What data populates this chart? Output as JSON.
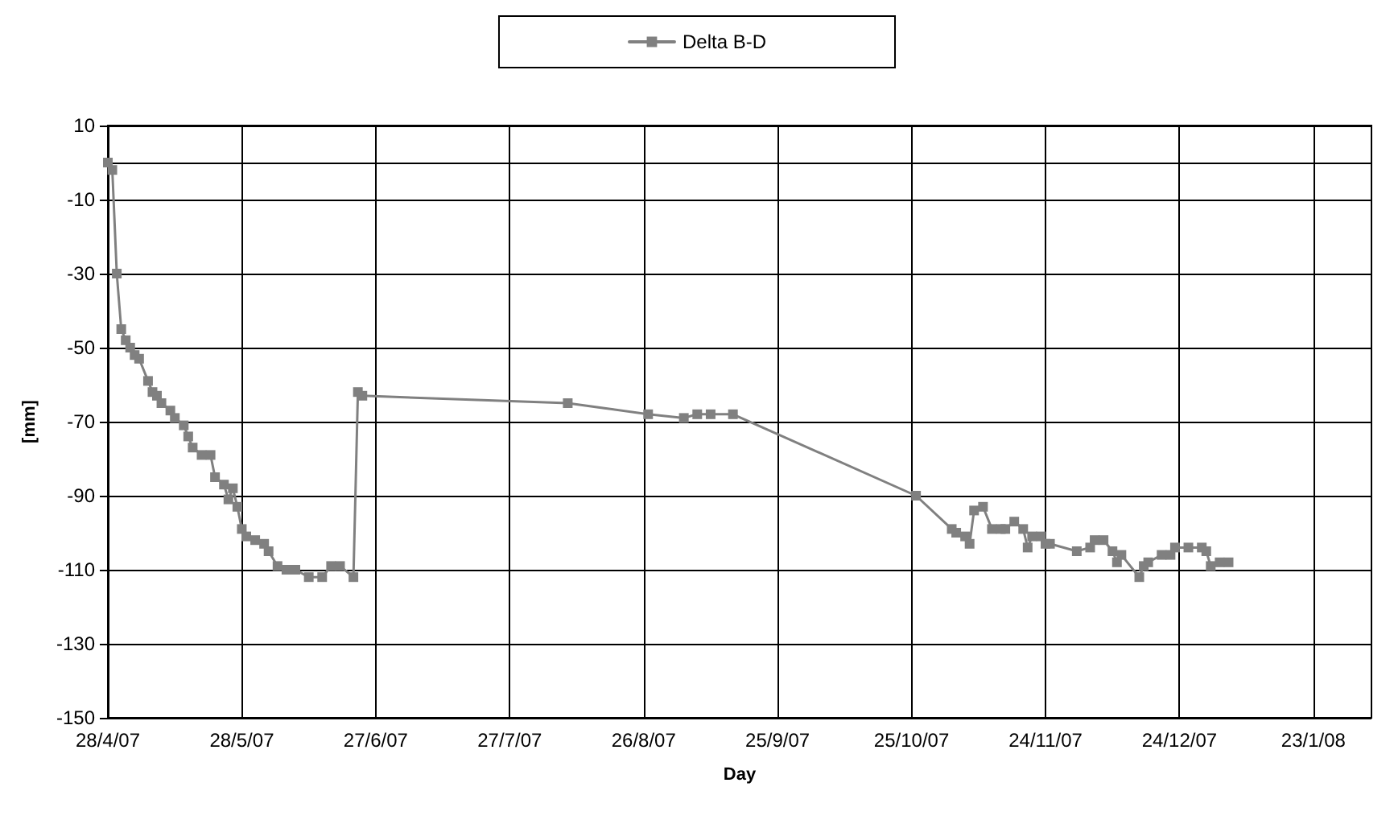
{
  "chart_data": {
    "type": "line",
    "xlabel": "Day",
    "ylabel": "[mm]",
    "legend": "top",
    "grid": true,
    "marker": "square",
    "line_style": "solid",
    "xlim": [
      "2007-04-28",
      "2008-02-05"
    ],
    "xticks": [
      {
        "value": "2007-04-28",
        "label": "28/4/07"
      },
      {
        "value": "2007-05-28",
        "label": "28/5/07"
      },
      {
        "value": "2007-06-27",
        "label": "27/6/07"
      },
      {
        "value": "2007-07-27",
        "label": "27/7/07"
      },
      {
        "value": "2007-08-26",
        "label": "26/8/07"
      },
      {
        "value": "2007-09-25",
        "label": "25/9/07"
      },
      {
        "value": "2007-10-25",
        "label": "25/10/07"
      },
      {
        "value": "2007-11-24",
        "label": "24/11/07"
      },
      {
        "value": "2007-12-24",
        "label": "24/12/07"
      },
      {
        "value": "2008-01-23",
        "label": "23/1/08"
      }
    ],
    "ylim": [
      -150,
      10
    ],
    "yticks": [
      -150,
      -130,
      -110,
      -90,
      -70,
      -50,
      -30,
      -10,
      10
    ],
    "series": [
      {
        "name": "Delta B-D",
        "color": "#808080",
        "x": [
          "2007-04-28",
          "2007-04-29",
          "2007-04-30",
          "2007-05-01",
          "2007-05-02",
          "2007-05-03",
          "2007-05-04",
          "2007-05-05",
          "2007-05-07",
          "2007-05-08",
          "2007-05-09",
          "2007-05-10",
          "2007-05-12",
          "2007-05-13",
          "2007-05-15",
          "2007-05-16",
          "2007-05-17",
          "2007-05-19",
          "2007-05-21",
          "2007-05-22",
          "2007-05-24",
          "2007-05-25",
          "2007-05-26",
          "2007-05-27",
          "2007-05-28",
          "2007-05-29",
          "2007-05-31",
          "2007-06-02",
          "2007-06-03",
          "2007-06-05",
          "2007-06-07",
          "2007-06-09",
          "2007-06-12",
          "2007-06-15",
          "2007-06-17",
          "2007-06-19",
          "2007-06-22",
          "2007-06-23",
          "2007-06-24",
          "2007-08-09",
          "2007-08-27",
          "2007-09-04",
          "2007-09-07",
          "2007-09-10",
          "2007-09-15",
          "2007-10-26",
          "2007-11-03",
          "2007-11-04",
          "2007-11-06",
          "2007-11-07",
          "2007-11-08",
          "2007-11-10",
          "2007-11-12",
          "2007-11-14",
          "2007-11-15",
          "2007-11-17",
          "2007-11-19",
          "2007-11-20",
          "2007-11-21",
          "2007-11-23",
          "2007-11-24",
          "2007-11-25",
          "2007-12-01",
          "2007-12-04",
          "2007-12-05",
          "2007-12-07",
          "2007-12-09",
          "2007-12-10",
          "2007-12-11",
          "2007-12-15",
          "2007-12-16",
          "2007-12-17",
          "2007-12-20",
          "2007-12-22",
          "2007-12-23",
          "2007-12-26",
          "2007-12-29",
          "2007-12-30",
          "2007-12-31",
          "2008-01-02",
          "2008-01-04"
        ],
        "values": [
          0,
          -2,
          -30,
          -45,
          -48,
          -50,
          -52,
          -53,
          -59,
          -62,
          -63,
          -65,
          -67,
          -69,
          -71,
          -74,
          -77,
          -79,
          -79,
          -85,
          -87,
          -91,
          -88,
          -93,
          -99,
          -101,
          -102,
          -103,
          -105,
          -109,
          -110,
          -110,
          -112,
          -112,
          -109,
          -109,
          -112,
          -62,
          -63,
          -65,
          -68,
          -69,
          -68,
          -68,
          -68,
          -90,
          -99,
          -100,
          -101,
          -103,
          -94,
          -93,
          -99,
          -99,
          -99,
          -97,
          -99,
          -104,
          -101,
          -101,
          -103,
          -103,
          -105,
          -104,
          -102,
          -102,
          -105,
          -108,
          -106,
          -112,
          -109,
          -108,
          -106,
          -106,
          -104,
          -104,
          -104,
          -105,
          -109,
          -108,
          -108
        ]
      }
    ]
  }
}
